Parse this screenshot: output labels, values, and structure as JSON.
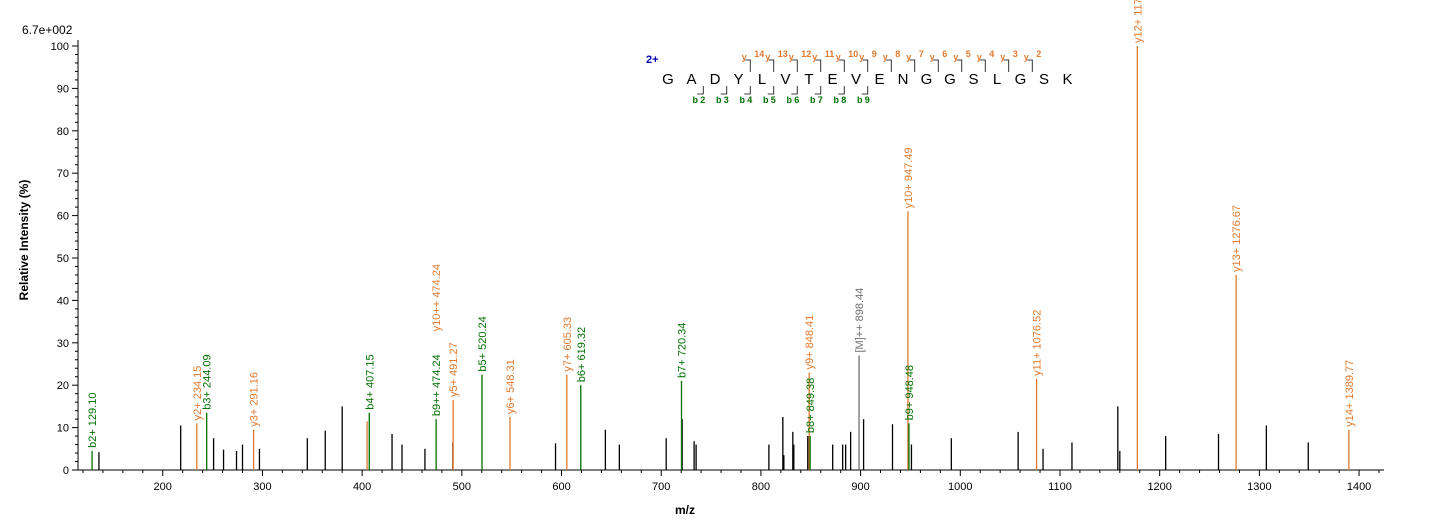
{
  "chart_data": {
    "type": "bar",
    "max_intensity_label": "6.7e+002",
    "xlabel": "m/z",
    "ylabel": "Relative   Intensity (%)",
    "xlim": [
      115,
      1425
    ],
    "ylim": [
      0,
      100
    ],
    "x_ticks": [
      200,
      300,
      400,
      500,
      600,
      700,
      800,
      900,
      1000,
      1100,
      1200,
      1300,
      1400
    ],
    "y_ticks": [
      0,
      10,
      20,
      30,
      40,
      50,
      60,
      70,
      80,
      90,
      100
    ],
    "colors": {
      "b": "#007000",
      "y": "#e07a30",
      "m": "#707070",
      "other": "#000000"
    },
    "sequence": {
      "charge": "2+",
      "residues": [
        "G",
        "A",
        "D",
        "Y",
        "L",
        "V",
        "T",
        "E",
        "V",
        "E",
        "N",
        "G",
        "G",
        "S",
        "L",
        "G",
        "S",
        "K"
      ],
      "y_ions": [
        {
          "label": "y",
          "sub": "14",
          "after": 4
        },
        {
          "label": "y",
          "sub": "13",
          "after": 5
        },
        {
          "label": "y",
          "sub": "12",
          "after": 6
        },
        {
          "label": "y",
          "sub": "11",
          "after": 7
        },
        {
          "label": "y",
          "sub": "10",
          "after": 8
        },
        {
          "label": "y",
          "sub": "9",
          "after": 9
        },
        {
          "label": "y",
          "sub": "8",
          "after": 10
        },
        {
          "label": "y",
          "sub": "7",
          "after": 11
        },
        {
          "label": "y",
          "sub": "6",
          "after": 12
        },
        {
          "label": "y",
          "sub": "5",
          "after": 13
        },
        {
          "label": "y",
          "sub": "4",
          "after": 14
        },
        {
          "label": "y",
          "sub": "3",
          "after": 15
        },
        {
          "label": "y",
          "sub": "2",
          "after": 16
        }
      ],
      "b_ions": [
        {
          "label": "b",
          "sub": "2",
          "after": 2
        },
        {
          "label": "b",
          "sub": "3",
          "after": 3
        },
        {
          "label": "b",
          "sub": "4",
          "after": 4
        },
        {
          "label": "b",
          "sub": "5",
          "after": 5
        },
        {
          "label": "b",
          "sub": "6",
          "after": 6
        },
        {
          "label": "b",
          "sub": "7",
          "after": 7
        },
        {
          "label": "b",
          "sub": "8",
          "after": 8
        },
        {
          "label": "b",
          "sub": "9",
          "after": 9
        }
      ]
    },
    "labeled_peaks": [
      {
        "mz": 129.1,
        "intensity": 4.5,
        "label": "b2+ 129.10",
        "ion": "b"
      },
      {
        "mz": 234.15,
        "intensity": 11,
        "label": "y2+ 234.15",
        "ion": "y"
      },
      {
        "mz": 244.09,
        "intensity": 13.5,
        "label": "b3+ 244.09",
        "ion": "b"
      },
      {
        "mz": 291.16,
        "intensity": 9.5,
        "label": "y3+ 291.16",
        "ion": "y"
      },
      {
        "mz": 405.0,
        "intensity": 11.5,
        "label": "",
        "ion": "y"
      },
      {
        "mz": 407.15,
        "intensity": 13.5,
        "label": "b4+ 407.15",
        "ion": "b"
      },
      {
        "mz": 474.24,
        "intensity": 12,
        "label": "b9++ 474.24",
        "ion": "b"
      },
      {
        "mz": 491.27,
        "intensity": 16.5,
        "label": "y5+ 491.27",
        "ion": "y"
      },
      {
        "mz": 474.24,
        "intensity": 32,
        "label": "y10++ 474.24",
        "ion": "y",
        "label_only": true
      },
      {
        "mz": 520.24,
        "intensity": 22.5,
        "label": "b5+ 520.24",
        "ion": "b"
      },
      {
        "mz": 548.31,
        "intensity": 12.5,
        "label": "y6+ 548.31",
        "ion": "y"
      },
      {
        "mz": 605.33,
        "intensity": 22.5,
        "label": "y7+ 605.33",
        "ion": "y"
      },
      {
        "mz": 619.32,
        "intensity": 20,
        "label": "b6+ 619.32",
        "ion": "b"
      },
      {
        "mz": 720.34,
        "intensity": 21,
        "label": "b7+ 720.34",
        "ion": "b"
      },
      {
        "mz": 848.41,
        "intensity": 23,
        "label": "y9+ 848.41",
        "ion": "y"
      },
      {
        "mz": 849.38,
        "intensity": 8,
        "label": "b8+ 849.38",
        "ion": "b"
      },
      {
        "mz": 898.44,
        "intensity": 27,
        "label": "[M]++ 898.44",
        "ion": "m"
      },
      {
        "mz": 947.49,
        "intensity": 61,
        "label": "y10+ 947.49",
        "ion": "y"
      },
      {
        "mz": 948.48,
        "intensity": 11,
        "label": "b9+ 948.48",
        "ion": "b"
      },
      {
        "mz": 1076.52,
        "intensity": 21.5,
        "label": "y11+ 1076.52",
        "ion": "y"
      },
      {
        "mz": 1177.59,
        "intensity": 100,
        "label": "y12+ 1177.59",
        "ion": "y"
      },
      {
        "mz": 1276.67,
        "intensity": 46,
        "label": "y13+ 1276.67",
        "ion": "y"
      },
      {
        "mz": 1389.77,
        "intensity": 9.5,
        "label": "y14+ 1389.77",
        "ion": "y"
      }
    ],
    "unlabeled_peaks": [
      [
        136,
        4.2
      ],
      [
        218,
        10.5
      ],
      [
        251,
        7.5
      ],
      [
        261,
        4.8
      ],
      [
        274,
        4.5
      ],
      [
        280,
        6
      ],
      [
        297,
        5
      ],
      [
        345,
        7.5
      ],
      [
        363,
        9.3
      ],
      [
        380,
        15
      ],
      [
        430,
        8.5
      ],
      [
        440,
        6
      ],
      [
        463,
        5
      ],
      [
        491,
        6.5
      ],
      [
        594,
        6.3
      ],
      [
        644,
        9.5
      ],
      [
        658,
        6
      ],
      [
        705,
        7.5
      ],
      [
        721,
        12
      ],
      [
        733,
        6.8
      ],
      [
        735,
        6
      ],
      [
        808,
        6
      ],
      [
        822,
        12.5
      ],
      [
        823,
        3.5
      ],
      [
        832,
        9
      ],
      [
        833,
        6
      ],
      [
        847,
        8
      ],
      [
        872,
        6
      ],
      [
        882,
        6
      ],
      [
        885,
        6
      ],
      [
        890,
        9
      ],
      [
        903,
        12
      ],
      [
        932,
        10.8
      ],
      [
        951,
        6
      ],
      [
        991,
        7.5
      ],
      [
        1058,
        9
      ],
      [
        1083,
        5
      ],
      [
        1112,
        6.5
      ],
      [
        1158,
        15
      ],
      [
        1160,
        4.5
      ],
      [
        1206,
        8
      ],
      [
        1259,
        8.5
      ],
      [
        1307,
        10.5
      ],
      [
        1349,
        6.5
      ]
    ]
  }
}
